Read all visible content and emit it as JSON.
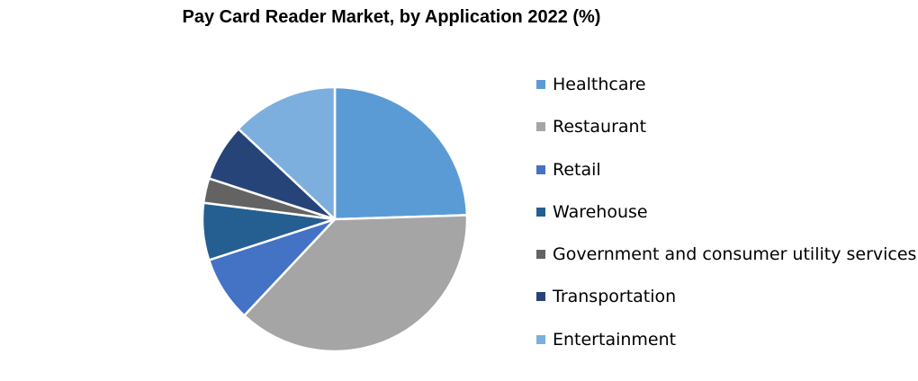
{
  "chart_data": {
    "type": "pie",
    "title": "Pay Card Reader Market, by Application 2022 (%)",
    "legend_position": "right",
    "categories": [
      "Healthcare",
      "Restaurant",
      "Retail",
      "Warehouse",
      "Government and consumer utility services",
      "Transportation",
      "Entertainment"
    ],
    "values": [
      24.5,
      37.5,
      8,
      7,
      3,
      7,
      13
    ],
    "colors": [
      "#5b9bd5",
      "#a5a5a5",
      "#4472c4",
      "#255e91",
      "#636363",
      "#264478",
      "#7cafdd"
    ],
    "start_angle_deg": 0,
    "direction": "clockwise"
  }
}
